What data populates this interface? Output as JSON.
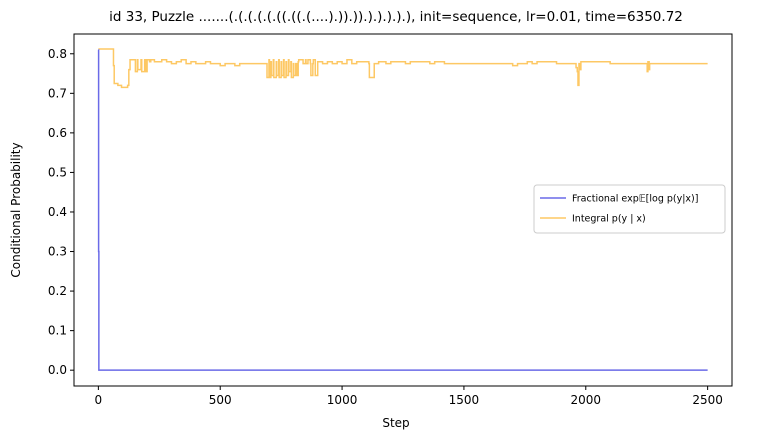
{
  "chart_data": {
    "type": "line",
    "title": "id 33, Puzzle .......(.(.(.(.(.((.((.(....).)).)).).).).).), init=sequence, lr=0.01, time=6350.72",
    "xlabel": "Step",
    "ylabel": "Conditional Probability",
    "xlim": [
      -100,
      2600
    ],
    "ylim": [
      -0.04,
      0.85
    ],
    "xticks": [
      0,
      500,
      1000,
      1500,
      2000,
      2500
    ],
    "xtick_labels": [
      "0",
      "500",
      "1000",
      "1500",
      "2000",
      "2500"
    ],
    "yticks": [
      0.0,
      0.1,
      0.2,
      0.3,
      0.4,
      0.5,
      0.6,
      0.7,
      0.8
    ],
    "ytick_labels": [
      "0.0",
      "0.1",
      "0.2",
      "0.3",
      "0.4",
      "0.5",
      "0.6",
      "0.7",
      "0.8"
    ],
    "grid": false,
    "legend_position": "center-right",
    "series": [
      {
        "name": "Fractional exp𝔼[log p(y|x)]",
        "color": "#6a6ae8",
        "x": [
          0,
          1,
          2,
          2500
        ],
        "y": [
          0.81,
          0.3,
          0.0,
          0.0
        ]
      },
      {
        "name": "Integral p(y | x)",
        "color": "#fdc864",
        "x": [
          0,
          60,
          62,
          65,
          80,
          95,
          110,
          120,
          125,
          130,
          150,
          152,
          160,
          162,
          175,
          178,
          190,
          195,
          200,
          210,
          215,
          230,
          240,
          260,
          280,
          300,
          320,
          340,
          360,
          380,
          400,
          420,
          440,
          460,
          480,
          500,
          520,
          540,
          560,
          580,
          600,
          620,
          640,
          660,
          680,
          690,
          692,
          700,
          702,
          708,
          710,
          718,
          720,
          730,
          732,
          740,
          742,
          750,
          752,
          760,
          762,
          770,
          772,
          780,
          782,
          790,
          792,
          800,
          802,
          810,
          815,
          820,
          822,
          840,
          850,
          852,
          860,
          870,
          872,
          880,
          882,
          890,
          900,
          920,
          940,
          960,
          980,
          1000,
          1020,
          1040,
          1060,
          1080,
          1100,
          1110,
          1112,
          1130,
          1132,
          1140,
          1150,
          1180,
          1200,
          1220,
          1240,
          1260,
          1280,
          1300,
          1320,
          1340,
          1360,
          1380,
          1400,
          1420,
          1440,
          1460,
          1480,
          1500,
          1520,
          1540,
          1560,
          1580,
          1600,
          1620,
          1640,
          1660,
          1680,
          1700,
          1720,
          1740,
          1760,
          1780,
          1800,
          1820,
          1840,
          1860,
          1880,
          1900,
          1920,
          1940,
          1950,
          1960,
          1965,
          1968,
          1972,
          1975,
          1980,
          2000,
          2020,
          2040,
          2060,
          2080,
          2100,
          2120,
          2140,
          2160,
          2180,
          2200,
          2220,
          2240,
          2250,
          2252,
          2255,
          2260,
          2262,
          2270,
          2300,
          2350,
          2400,
          2450,
          2500
        ],
        "y": [
          0.812,
          0.812,
          0.77,
          0.725,
          0.72,
          0.715,
          0.715,
          0.72,
          0.76,
          0.785,
          0.785,
          0.755,
          0.785,
          0.76,
          0.785,
          0.755,
          0.785,
          0.755,
          0.785,
          0.78,
          0.785,
          0.78,
          0.78,
          0.785,
          0.78,
          0.775,
          0.78,
          0.785,
          0.775,
          0.78,
          0.775,
          0.775,
          0.78,
          0.775,
          0.775,
          0.77,
          0.775,
          0.775,
          0.77,
          0.775,
          0.775,
          0.775,
          0.775,
          0.775,
          0.775,
          0.775,
          0.74,
          0.785,
          0.74,
          0.78,
          0.745,
          0.785,
          0.74,
          0.78,
          0.745,
          0.785,
          0.74,
          0.78,
          0.745,
          0.785,
          0.74,
          0.78,
          0.745,
          0.785,
          0.755,
          0.78,
          0.74,
          0.775,
          0.745,
          0.775,
          0.745,
          0.78,
          0.785,
          0.775,
          0.785,
          0.775,
          0.785,
          0.775,
          0.745,
          0.775,
          0.785,
          0.745,
          0.78,
          0.775,
          0.78,
          0.775,
          0.78,
          0.775,
          0.785,
          0.775,
          0.78,
          0.78,
          0.78,
          0.775,
          0.74,
          0.74,
          0.775,
          0.775,
          0.78,
          0.775,
          0.78,
          0.78,
          0.78,
          0.775,
          0.78,
          0.78,
          0.78,
          0.78,
          0.775,
          0.78,
          0.78,
          0.775,
          0.775,
          0.775,
          0.775,
          0.775,
          0.775,
          0.775,
          0.775,
          0.775,
          0.775,
          0.775,
          0.775,
          0.775,
          0.775,
          0.77,
          0.775,
          0.775,
          0.78,
          0.775,
          0.78,
          0.78,
          0.78,
          0.78,
          0.775,
          0.775,
          0.775,
          0.775,
          0.775,
          0.765,
          0.755,
          0.72,
          0.775,
          0.76,
          0.78,
          0.78,
          0.78,
          0.78,
          0.78,
          0.78,
          0.775,
          0.775,
          0.775,
          0.775,
          0.775,
          0.775,
          0.775,
          0.775,
          0.775,
          0.755,
          0.78,
          0.76,
          0.775,
          0.775,
          0.775,
          0.775,
          0.775,
          0.775,
          0.775
        ]
      }
    ]
  }
}
